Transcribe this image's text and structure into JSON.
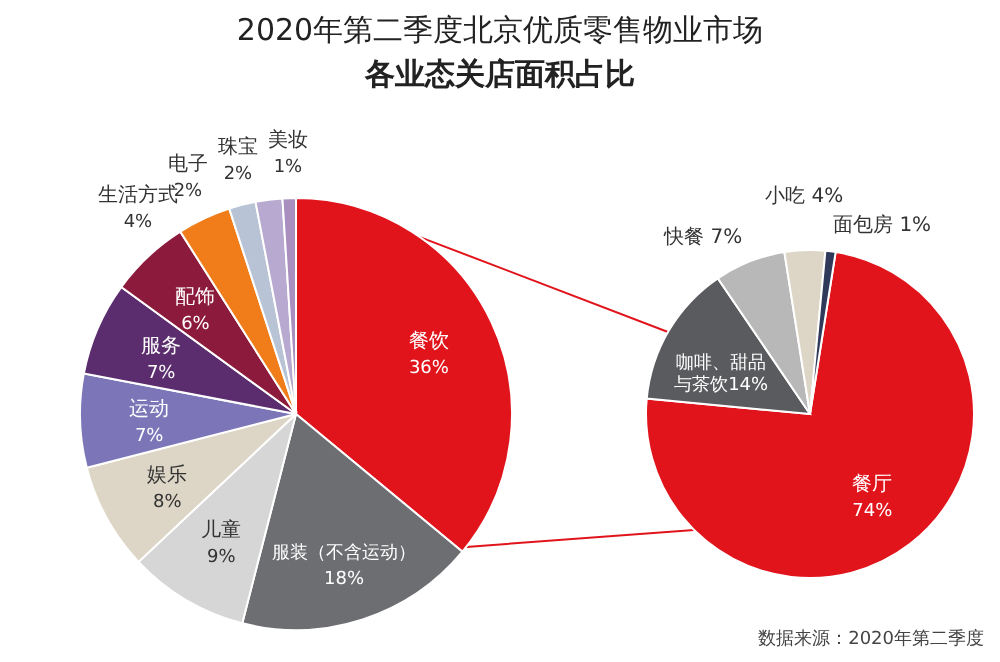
{
  "chart_data": [
    {
      "type": "pie",
      "title": "2020年第二季度北京优质零售物业市场",
      "subtitle": "各业态关店面积占比",
      "categories": [
        "餐饮",
        "服装（不含运动）",
        "儿童",
        "娱乐",
        "运动",
        "服务",
        "配饰",
        "生活方式",
        "电子",
        "珠宝",
        "美妆"
      ],
      "values": [
        36,
        18,
        9,
        8,
        7,
        7,
        6,
        4,
        2,
        2,
        1
      ],
      "colors": [
        "#e1141c",
        "#6d6e71",
        "#d6d6d6",
        "#ddd6c6",
        "#7c76b9",
        "#5b2d6e",
        "#8c1a3c",
        "#f07d1a",
        "#b9c3d6",
        "#b7a9cf",
        "#a98fbf"
      ],
      "value_labels": [
        "36%",
        "18%",
        "9%",
        "8%",
        "7%",
        "7%",
        "6%",
        "4%",
        "2%",
        "2%",
        "1%"
      ]
    },
    {
      "type": "pie",
      "categories": [
        "餐厅",
        "咖啡、甜品与茶饮",
        "快餐",
        "小吃",
        "面包房"
      ],
      "values": [
        74,
        14,
        7,
        4,
        1
      ],
      "colors": [
        "#e1141c",
        "#5a5b5e",
        "#b8b8b8",
        "#ddd6c6",
        "#2f3a5a"
      ],
      "value_labels": [
        "74%",
        "14%",
        "7%",
        "4%",
        "1%"
      ],
      "annotations": [
        "数据来源：2020年第二季度"
      ]
    }
  ]
}
